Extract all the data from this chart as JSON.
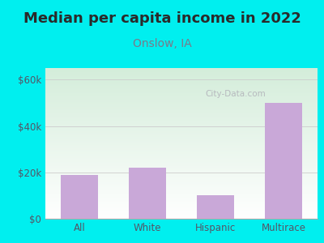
{
  "title": "Median per capita income in 2022",
  "subtitle": "Onslow, IA",
  "categories": [
    "All",
    "White",
    "Hispanic",
    "Multirace"
  ],
  "values": [
    19000,
    22000,
    10000,
    50000
  ],
  "bar_color": "#c9a8d8",
  "background_color": "#00EFEF",
  "plot_bg_top_left": "#d4edda",
  "plot_bg_bottom_right": "#ffffff",
  "title_color": "#2a2a2a",
  "subtitle_color": "#7a7a8a",
  "axis_label_color": "#555566",
  "ytick_labels": [
    "$0",
    "$20k",
    "$40k",
    "$60k"
  ],
  "ytick_values": [
    0,
    20000,
    40000,
    60000
  ],
  "ylim": [
    0,
    65000
  ],
  "watermark": "City-Data.com",
  "title_fontsize": 13,
  "subtitle_fontsize": 10,
  "tick_fontsize": 8.5
}
